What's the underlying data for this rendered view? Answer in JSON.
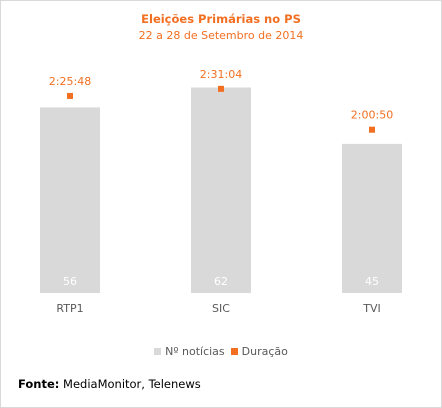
{
  "colors": {
    "accent": "#f26f21",
    "bar": "#d9d9d9",
    "bar_label": "#ffffff",
    "axis_text": "#595959",
    "frame": "#d9d9d9"
  },
  "source": {
    "label": "Fonte:",
    "text": " MediaMonitor, Telenews"
  },
  "chart_data": {
    "type": "bar",
    "title": "Eleições Primárias no PS",
    "subtitle": "22 a 28 de Setembro de 2014",
    "categories": [
      "RTP1",
      "SIC",
      "TVI"
    ],
    "series": [
      {
        "name": "Nº notícias",
        "kind": "bar",
        "values": [
          56,
          62,
          45
        ],
        "labels": [
          "56",
          "62",
          "45"
        ]
      },
      {
        "name": "Duração",
        "kind": "marker",
        "values_seconds": [
          8748,
          9064,
          7250
        ],
        "labels": [
          "2:25:48",
          "2:31:04",
          "2:00:50"
        ]
      }
    ],
    "legend_position": "bottom",
    "grid": false
  }
}
